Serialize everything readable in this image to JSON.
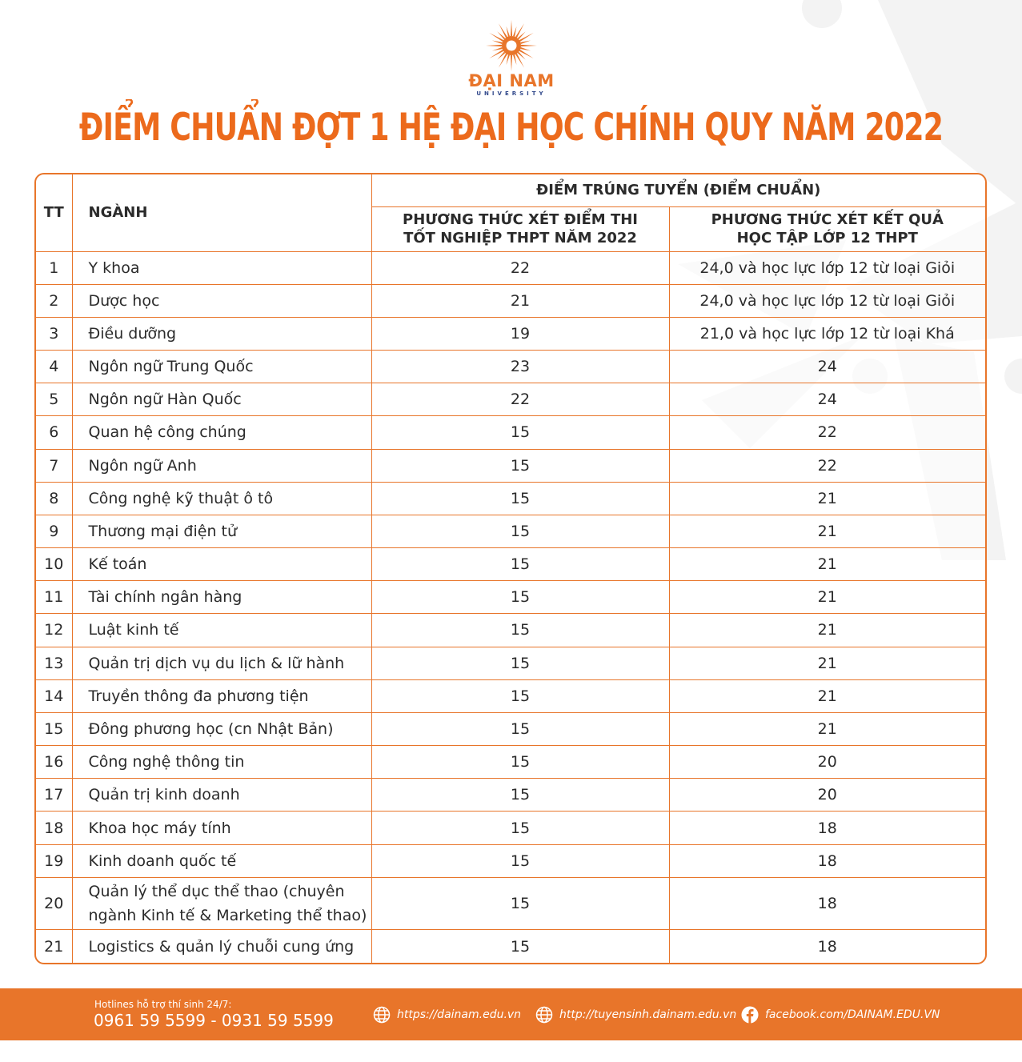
{
  "logo": {
    "name": "ĐẠI NAM",
    "sub": "UNIVERSITY"
  },
  "title": "ĐIỂM CHUẨN ĐỢT 1 HỆ ĐẠI HỌC CHÍNH QUY NĂM 2022",
  "table": {
    "header": {
      "tt": "TT",
      "nganh": "NGÀNH",
      "group": "ĐIỂM TRÚNG TUYỂN (ĐIỂM CHUẨN)",
      "method1_line1": "PHƯƠNG THỨC XÉT ĐIỂM THI",
      "method1_line2": "TỐT NGHIỆP THPT NĂM 2022",
      "method2_line1": "PHƯƠNG THỨC XÉT KẾT QUẢ",
      "method2_line2": "HỌC TẬP LỚP 12 THPT"
    },
    "rows": [
      {
        "tt": "1",
        "name": "Y khoa",
        "m1": "22",
        "m2": "24,0 và học lực lớp 12 từ loại Giỏi"
      },
      {
        "tt": "2",
        "name": "Dược học",
        "m1": "21",
        "m2": "24,0 và học lực lớp 12 từ loại Giỏi"
      },
      {
        "tt": "3",
        "name": "Điều dưỡng",
        "m1": "19",
        "m2": "21,0 và học lực lớp 12 từ loại Khá"
      },
      {
        "tt": "4",
        "name": "Ngôn ngữ Trung Quốc",
        "m1": "23",
        "m2": "24"
      },
      {
        "tt": "5",
        "name": "Ngôn ngữ Hàn Quốc",
        "m1": "22",
        "m2": "24"
      },
      {
        "tt": "6",
        "name": "Quan hệ công chúng",
        "m1": "15",
        "m2": "22"
      },
      {
        "tt": "7",
        "name": "Ngôn ngữ Anh",
        "m1": "15",
        "m2": "22"
      },
      {
        "tt": "8",
        "name": "Công nghệ kỹ thuật ô tô",
        "m1": "15",
        "m2": "21"
      },
      {
        "tt": "9",
        "name": "Thương mại điện tử",
        "m1": "15",
        "m2": "21"
      },
      {
        "tt": "10",
        "name": "Kế toán",
        "m1": "15",
        "m2": "21"
      },
      {
        "tt": "11",
        "name": "Tài chính ngân hàng",
        "m1": "15",
        "m2": "21"
      },
      {
        "tt": "12",
        "name": "Luật kinh tế",
        "m1": "15",
        "m2": "21"
      },
      {
        "tt": "13",
        "name": "Quản trị dịch vụ du lịch & lữ hành",
        "m1": "15",
        "m2": "21"
      },
      {
        "tt": "14",
        "name": "Truyền thông đa phương tiện",
        "m1": "15",
        "m2": "21"
      },
      {
        "tt": "15",
        "name": "Đông phương học (cn Nhật Bản)",
        "m1": "15",
        "m2": "21"
      },
      {
        "tt": "16",
        "name": "Công nghệ thông tin",
        "m1": "15",
        "m2": "20"
      },
      {
        "tt": "17",
        "name": "Quản trị kinh doanh",
        "m1": "15",
        "m2": "20"
      },
      {
        "tt": "18",
        "name": "Khoa học máy tính",
        "m1": "15",
        "m2": "18"
      },
      {
        "tt": "19",
        "name": "Kinh doanh quốc tế",
        "m1": "15",
        "m2": "18"
      },
      {
        "tt": "20",
        "name": "Quản lý thể dục thể thao (chuyên ngành Kinh tế & Marketing thể thao)",
        "m1": "15",
        "m2": "18"
      },
      {
        "tt": "21",
        "name": "Logistics & quản lý chuỗi cung ứng",
        "m1": "15",
        "m2": "18"
      }
    ]
  },
  "footer": {
    "hotline_label": "Hotlines hỗ trợ thí sinh 24/7:",
    "hotline_numbers": "0961 59 5599 - 0931 59 5599",
    "links": [
      {
        "icon": "globe-icon",
        "text": "https://dainam.edu.vn"
      },
      {
        "icon": "globe-icon",
        "text": "http://tuyensinh.dainam.edu.vn"
      },
      {
        "icon": "facebook-icon",
        "text": "facebook.com/DAINAM.EDU.VN"
      }
    ]
  },
  "colors": {
    "accent": "#e8752a",
    "title": "#ec6a1c",
    "logo_sub": "#334a8c"
  }
}
